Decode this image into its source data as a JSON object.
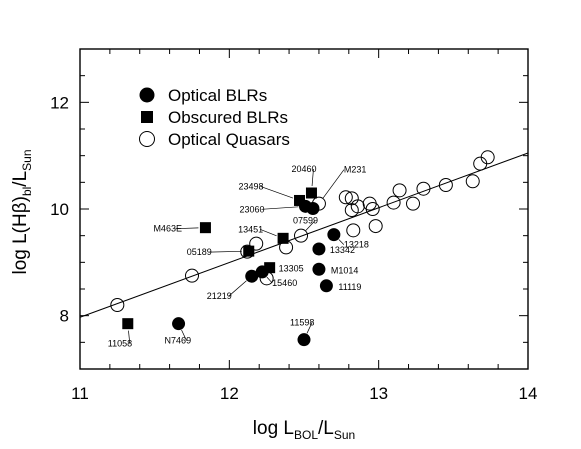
{
  "chart_data": {
    "type": "scatter",
    "title": "",
    "xlabel": {
      "main": "log L",
      "sub1": "BOL",
      "mid": "/L",
      "sub2": "Sun"
    },
    "ylabel": {
      "main": "log L(Hβ)",
      "sub1": "bl",
      "mid": "/L",
      "sub2": "Sun"
    },
    "xlim": [
      11,
      14
    ],
    "ylim": [
      7,
      13
    ],
    "xticks": [
      "11",
      "12",
      "13",
      "14"
    ],
    "yticks": [
      "8",
      "10",
      "12"
    ],
    "grid": false,
    "legend": {
      "placement": "top-left",
      "entries": [
        {
          "name": "Optical BLRs",
          "marker": "filled-circle"
        },
        {
          "name": "Obscured BLRs",
          "marker": "filled-square"
        },
        {
          "name": "Optical Quasars",
          "marker": "open-circle"
        }
      ]
    },
    "fit_line": {
      "x": [
        11,
        14
      ],
      "y": [
        7.97,
        11.05
      ]
    },
    "series": [
      {
        "name": "Optical BLRs",
        "marker": "filled-circle",
        "points": [
          {
            "x": 11.66,
            "y": 7.85,
            "label": "N7469"
          },
          {
            "x": 12.5,
            "y": 7.55,
            "label": "11598"
          },
          {
            "x": 12.15,
            "y": 8.74,
            "label": "21219"
          },
          {
            "x": 12.22,
            "y": 8.82,
            "label": "15460"
          },
          {
            "x": 12.6,
            "y": 8.87,
            "label": "M1014"
          },
          {
            "x": 12.65,
            "y": 8.56,
            "label": "11119"
          },
          {
            "x": 12.6,
            "y": 9.25,
            "label": "13342"
          },
          {
            "x": 12.7,
            "y": 9.52,
            "label": "13218"
          },
          {
            "x": 12.51,
            "y": 10.05,
            "label": "23060"
          },
          {
            "x": 12.56,
            "y": 10.01,
            "label": ""
          }
        ]
      },
      {
        "name": "Obscured BLRs",
        "marker": "filled-square",
        "points": [
          {
            "x": 11.32,
            "y": 7.85,
            "label": "11058"
          },
          {
            "x": 11.84,
            "y": 9.65,
            "label": "M463E"
          },
          {
            "x": 12.13,
            "y": 9.21,
            "label": "05189"
          },
          {
            "x": 12.27,
            "y": 8.9,
            "label": "13305"
          },
          {
            "x": 12.36,
            "y": 9.45,
            "label": "13451"
          },
          {
            "x": 12.47,
            "y": 10.16,
            "label": "23498"
          },
          {
            "x": 12.55,
            "y": 10.3,
            "label": "20460"
          }
        ]
      },
      {
        "name": "Optical Quasars",
        "marker": "open-circle",
        "points": [
          {
            "x": 11.25,
            "y": 8.2,
            "label": ""
          },
          {
            "x": 11.75,
            "y": 8.75,
            "label": ""
          },
          {
            "x": 12.12,
            "y": 9.2,
            "label": ""
          },
          {
            "x": 12.18,
            "y": 9.35,
            "label": ""
          },
          {
            "x": 12.25,
            "y": 8.7,
            "label": ""
          },
          {
            "x": 12.38,
            "y": 9.28,
            "label": ""
          },
          {
            "x": 12.48,
            "y": 9.5,
            "label": "07599"
          },
          {
            "x": 12.6,
            "y": 10.1,
            "label": "M231"
          },
          {
            "x": 12.78,
            "y": 10.22,
            "label": ""
          },
          {
            "x": 12.82,
            "y": 10.2,
            "label": ""
          },
          {
            "x": 12.82,
            "y": 9.98,
            "label": ""
          },
          {
            "x": 12.86,
            "y": 10.05,
            "label": ""
          },
          {
            "x": 12.83,
            "y": 9.6,
            "label": ""
          },
          {
            "x": 12.94,
            "y": 10.1,
            "label": ""
          },
          {
            "x": 12.96,
            "y": 10.0,
            "label": ""
          },
          {
            "x": 12.98,
            "y": 9.68,
            "label": ""
          },
          {
            "x": 13.1,
            "y": 10.12,
            "label": ""
          },
          {
            "x": 13.14,
            "y": 10.35,
            "label": ""
          },
          {
            "x": 13.23,
            "y": 10.1,
            "label": ""
          },
          {
            "x": 13.3,
            "y": 10.38,
            "label": ""
          },
          {
            "x": 13.45,
            "y": 10.45,
            "label": ""
          },
          {
            "x": 13.63,
            "y": 10.52,
            "label": ""
          },
          {
            "x": 13.68,
            "y": 10.85,
            "label": ""
          },
          {
            "x": 13.73,
            "y": 10.97,
            "label": ""
          }
        ]
      }
    ]
  }
}
